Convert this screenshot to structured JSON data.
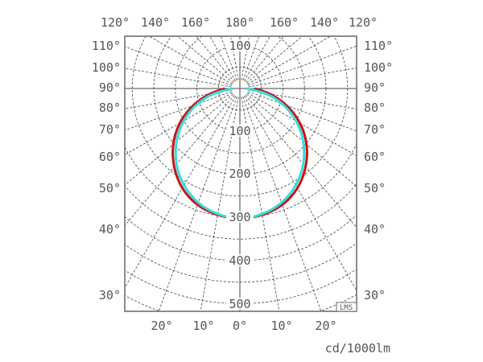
{
  "chart_data": {
    "type": "polar",
    "unit_label": "cd/1000lm",
    "badge": "LMS",
    "radial_ticks": [
      "100",
      "100",
      "200",
      "300",
      "400",
      "500"
    ],
    "radial_range": [
      0,
      500
    ],
    "angle_labels_top": [
      "120°",
      "140°",
      "160°",
      "180°",
      "160°",
      "140°",
      "120°"
    ],
    "angle_labels_left": [
      "110°",
      "100°",
      "90°",
      "80°",
      "70°",
      "60°",
      "50°",
      "40°",
      "30°"
    ],
    "angle_labels_right": [
      "110°",
      "100°",
      "90°",
      "80°",
      "70°",
      "60°",
      "50°",
      "40°",
      "30°"
    ],
    "angle_labels_bottom": [
      "20°",
      "10°",
      "0°",
      "10°",
      "20°"
    ],
    "grid": true,
    "angles": [
      0,
      10,
      20,
      30,
      40,
      50,
      60,
      70,
      80,
      90
    ],
    "series": [
      {
        "color": "#cc1111",
        "values": [
          305,
          300,
          290,
          270,
          240,
          205,
          165,
          120,
          75,
          35
        ]
      },
      {
        "color": "#33dddd",
        "values": [
          305,
          298,
          285,
          262,
          232,
          195,
          155,
          110,
          65,
          15
        ]
      }
    ]
  }
}
